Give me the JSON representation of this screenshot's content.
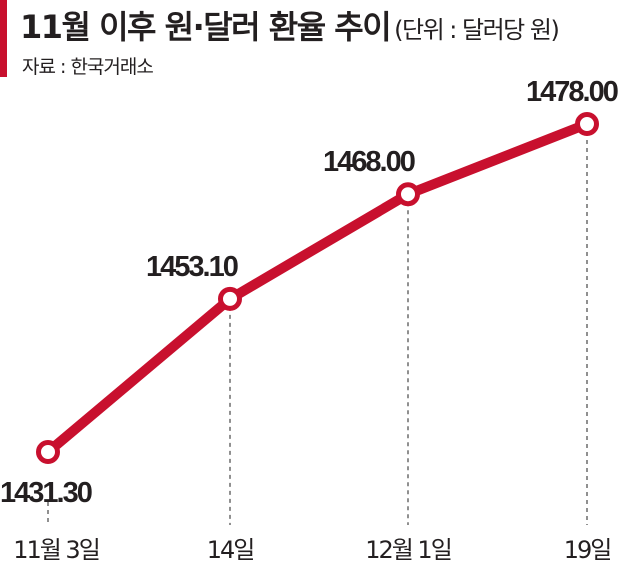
{
  "header": {
    "title": "11월 이후 원·달러 환율 추이",
    "unit": "(단위 : 달러당 원)",
    "source": "자료 : 한국거래소"
  },
  "colors": {
    "accent": "#c8102e",
    "line": "#c8102e",
    "text": "#231f20",
    "guide": "#555555"
  },
  "chart_data": {
    "type": "line",
    "title": "11월 이후 원·달러 환율 추이",
    "subtitle": "(단위 : 달러당 원)",
    "source": "자료 : 한국거래소",
    "xlabel": "",
    "ylabel": "달러당 원",
    "categories": [
      "11월 3일",
      "14일",
      "12월 1일",
      "19일"
    ],
    "series": [
      {
        "name": "원·달러 환율",
        "values": [
          1431.3,
          1453.1,
          1468.0,
          1478.0
        ]
      }
    ],
    "value_labels": [
      "1431.30",
      "1453.10",
      "1468.00",
      "1478.00"
    ],
    "grid": false,
    "legend": "none",
    "ylim": [
      1425,
      1485
    ]
  }
}
